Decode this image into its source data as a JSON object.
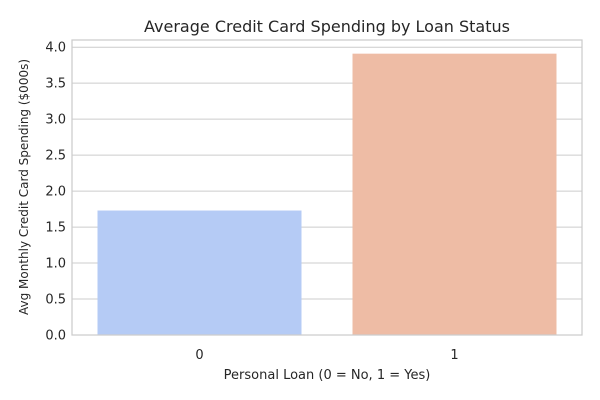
{
  "chart_data": {
    "type": "bar",
    "title": "Average Credit Card Spending by Loan Status",
    "xlabel": "Personal Loan (0 = No, 1 = Yes)",
    "ylabel": "Avg Monthly Credit Card Spending ($000s)",
    "categories": [
      "0",
      "1"
    ],
    "values": [
      1.73,
      3.91
    ],
    "colors": [
      "#b5cbf5",
      "#eebca5"
    ],
    "ylim": [
      0,
      4.1
    ],
    "yticks": [
      "0.0",
      "0.5",
      "1.0",
      "1.5",
      "2.0",
      "2.5",
      "3.0",
      "3.5",
      "4.0"
    ],
    "grid": true,
    "legend": "none"
  }
}
